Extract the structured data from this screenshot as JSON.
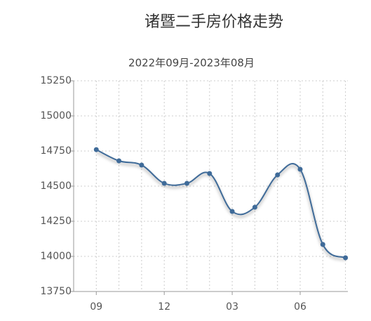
{
  "chart_data": {
    "type": "line",
    "title": "诸暨二手房价格走势",
    "subtitle": "2022年09月-2023年08月",
    "categories": [
      "09",
      null,
      null,
      "12",
      null,
      null,
      "03",
      null,
      null,
      "06",
      null,
      null
    ],
    "series": [
      {
        "color": "#3f6b99",
        "values": [
          14760,
          14680,
          14650,
          14520,
          14520,
          14590,
          14320,
          14350,
          14580,
          14620,
          14085,
          13990
        ]
      }
    ],
    "ylim": [
      13750,
      15250
    ],
    "yticks": [
      13750,
      14000,
      14250,
      14500,
      14750,
      15000,
      15250
    ],
    "grid": true
  }
}
